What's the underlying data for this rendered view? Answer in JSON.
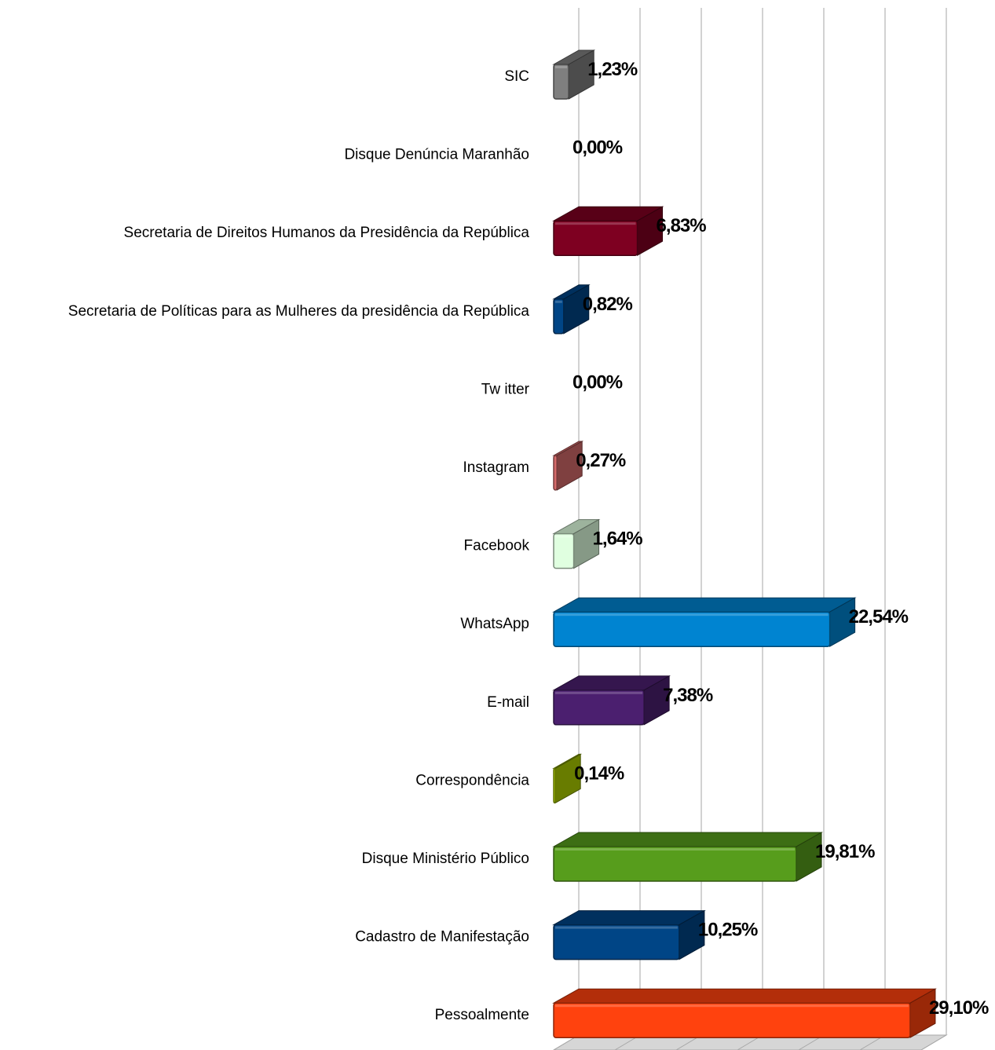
{
  "chart_data": {
    "type": "bar",
    "orientation": "horizontal",
    "style": "3d",
    "grid": true,
    "legend": "none",
    "xlim": [
      0,
      30
    ],
    "categories": [
      "SIC",
      "Disque Denúncia Maranhão",
      "Secretaria de Direitos Humanos da Presidência da República",
      "Secretaria de Políticas para as Mulheres da presidência da República",
      "Tw itter",
      "Instagram",
      "Facebook",
      "WhatsApp",
      "E-mail",
      "Correspondência",
      "Disque Ministério Público",
      "Cadastro de Manifestação",
      "Pessoalmente"
    ],
    "values": [
      1.23,
      0.0,
      6.83,
      0.82,
      0.0,
      0.27,
      1.64,
      22.54,
      7.38,
      0.14,
      19.81,
      10.25,
      29.1
    ],
    "value_labels": [
      "1,23%",
      "0,00%",
      "6,83%",
      "0,82%",
      "0,00%",
      "0,27%",
      "1,64%",
      "22,54%",
      "7,38%",
      "0,14%",
      "19,81%",
      "10,25%",
      "29,10%"
    ],
    "colors": [
      "#7f7f7f",
      "#bdbdbd",
      "#7e0021",
      "#004586",
      "#83caff",
      "#d46a6a",
      "#e0ffe0",
      "#0084d1",
      "#4b1f6f",
      "#aecf00",
      "#579d1c",
      "#004586",
      "#ff420e"
    ],
    "title": "",
    "xlabel": "",
    "ylabel": ""
  }
}
